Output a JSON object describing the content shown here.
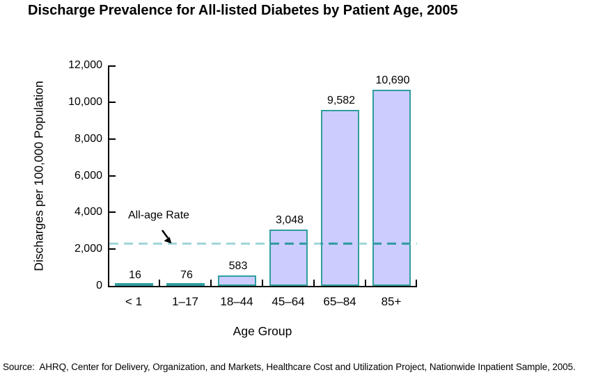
{
  "title": "Discharge Prevalence for All-listed Diabetes by Patient Age, 2005",
  "source_note": "Source:  AHRQ, Center for Delivery, Organization, and Markets, Healthcare Cost and Utilization Project, Nationwide Inpatient Sample, 2005.",
  "chart_data": {
    "type": "bar",
    "title": "Discharge Prevalence for All-listed Diabetes by Patient Age, 2005",
    "categories": [
      "< 1",
      "1–17",
      "18–44",
      "45–64",
      "65–84",
      "85+"
    ],
    "values": [
      16,
      76,
      583,
      3048,
      9582,
      10690
    ],
    "value_labels": [
      "16",
      "76",
      "583",
      "3,048",
      "9,582",
      "10,690"
    ],
    "xlabel": "Age Group",
    "ylabel": "Discharges per 100,000 Population",
    "ylim": [
      0,
      12000
    ],
    "ytick_step": 2000,
    "ytick_labels": [
      "0",
      "2,000",
      "4,000",
      "6,000",
      "8,000",
      "10,000",
      "12,000"
    ],
    "grid": false,
    "legend": "none",
    "reference_line": {
      "label": "All-age Rate",
      "value": 2300,
      "style": "dashed",
      "note": "value estimated from axis position; not printed on chart"
    },
    "colors": {
      "bar_fill": "#ccccff",
      "bar_border": "#2e9e9e",
      "ref_line_on_white": "#9ed4d8",
      "ref_line_on_bar": "#2f99a1",
      "axis": "#000000",
      "text": "#000000"
    }
  }
}
